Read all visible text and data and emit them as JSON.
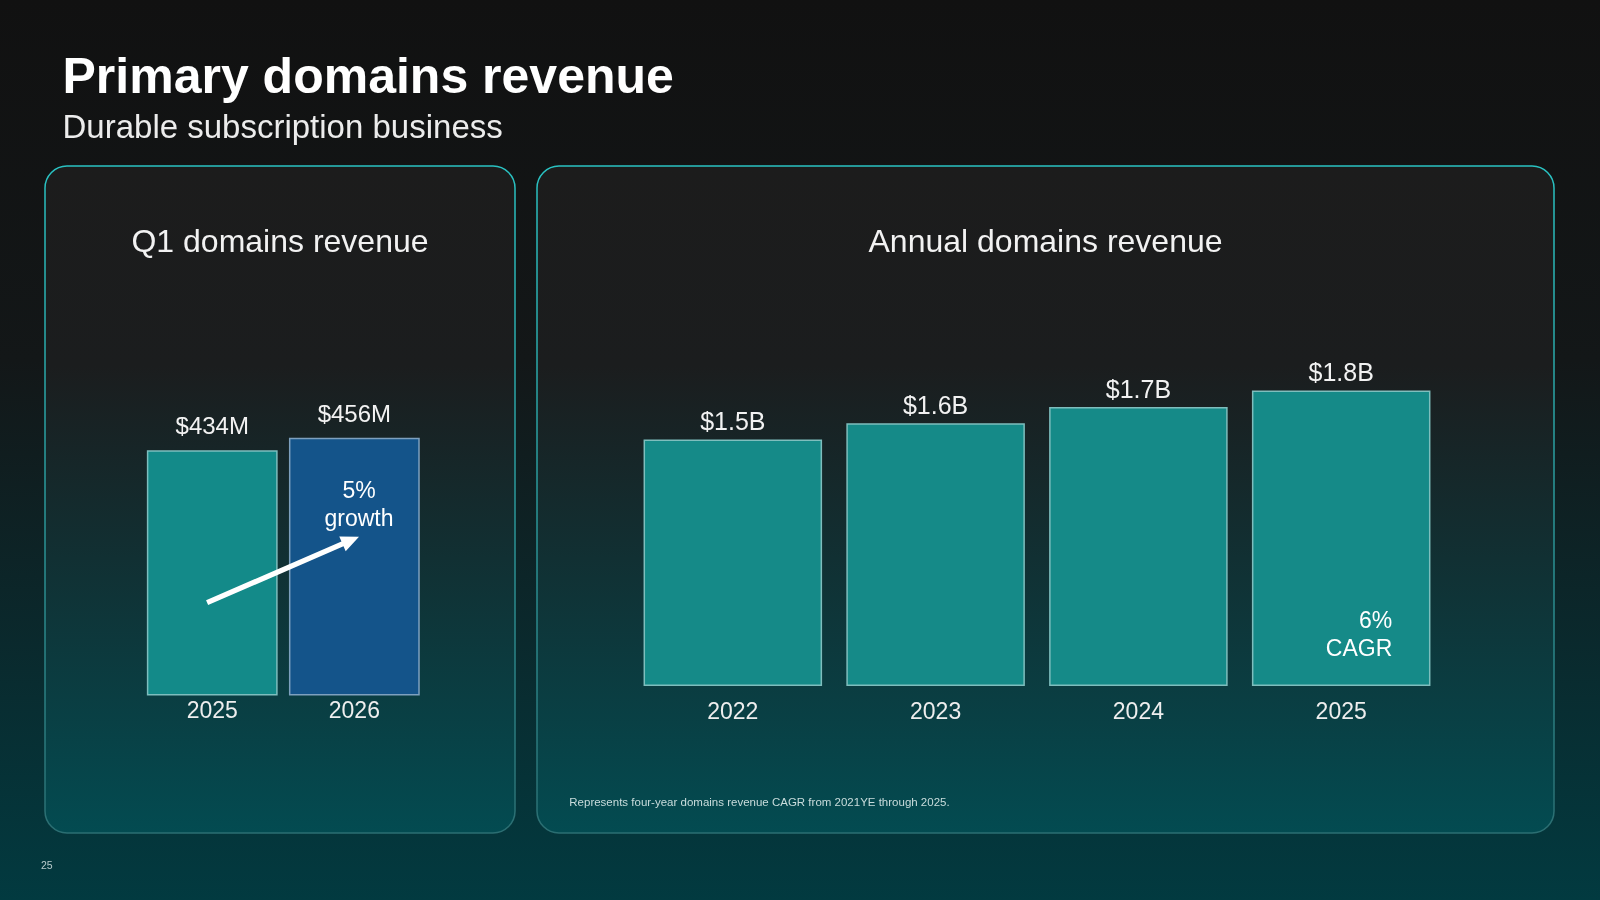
{
  "chart_data": [
    {
      "type": "other",
      "title": "Primary domains revenue",
      "subtitle": "Durable subscription business",
      "annotations": [
        "25"
      ]
    },
    {
      "type": "bar",
      "title": "Q1 domains revenue",
      "categories": [
        "2025",
        "2026"
      ],
      "values": [
        434,
        456
      ],
      "colors": [
        "#138a89",
        "#14548a"
      ],
      "value_labels": [
        "$434M",
        "$456M"
      ],
      "tick_labels": "x",
      "annotations": [
        "5% growth"
      ]
    },
    {
      "type": "bar",
      "title": "Annual domains revenue",
      "categories": [
        "2022",
        "2023",
        "2024",
        "2025"
      ],
      "values": [
        1.5,
        1.6,
        1.7,
        1.8
      ],
      "color": "#158a88",
      "value_labels": [
        "$1.5B",
        "$1.6B",
        "$1.7B",
        "$1.8B"
      ],
      "tick_labels": "x",
      "annotations": [
        "6% CAGR",
        "Represents four-year domains revenue CAGR from 2021YE through 2025."
      ]
    }
  ]
}
